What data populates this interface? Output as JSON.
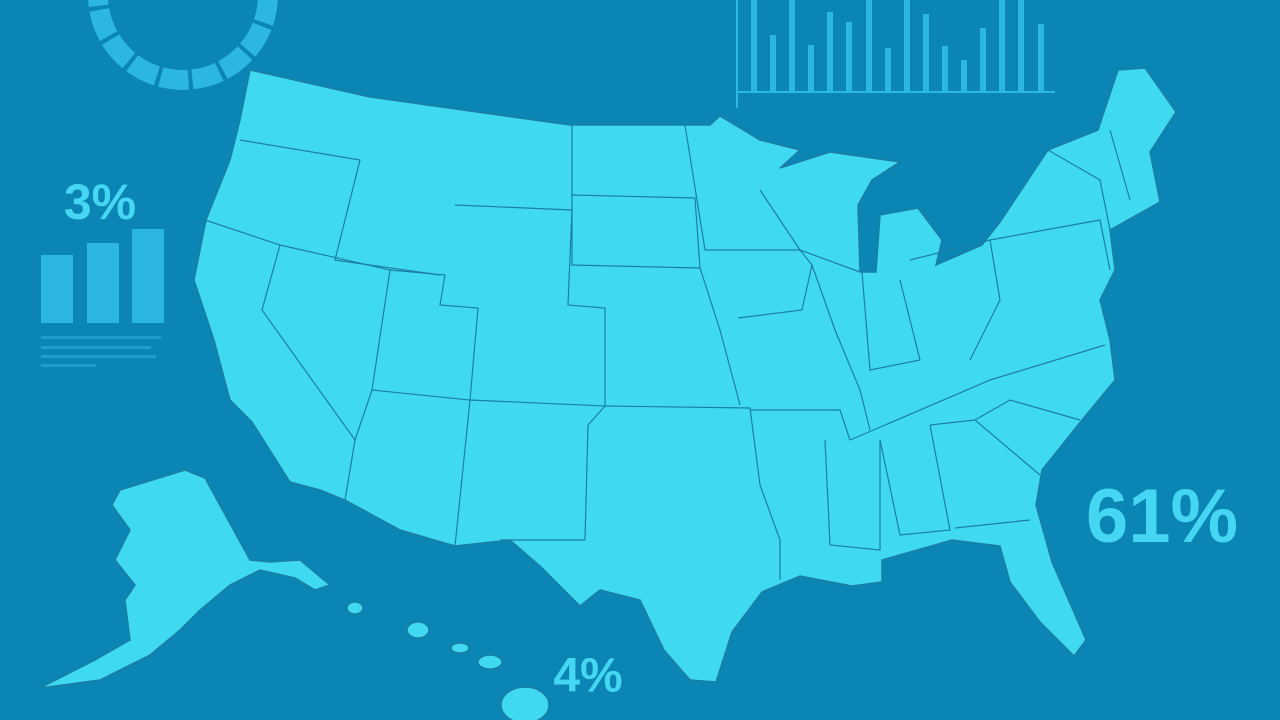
{
  "stats": [
    "3%",
    "61%",
    "4%"
  ]
}
